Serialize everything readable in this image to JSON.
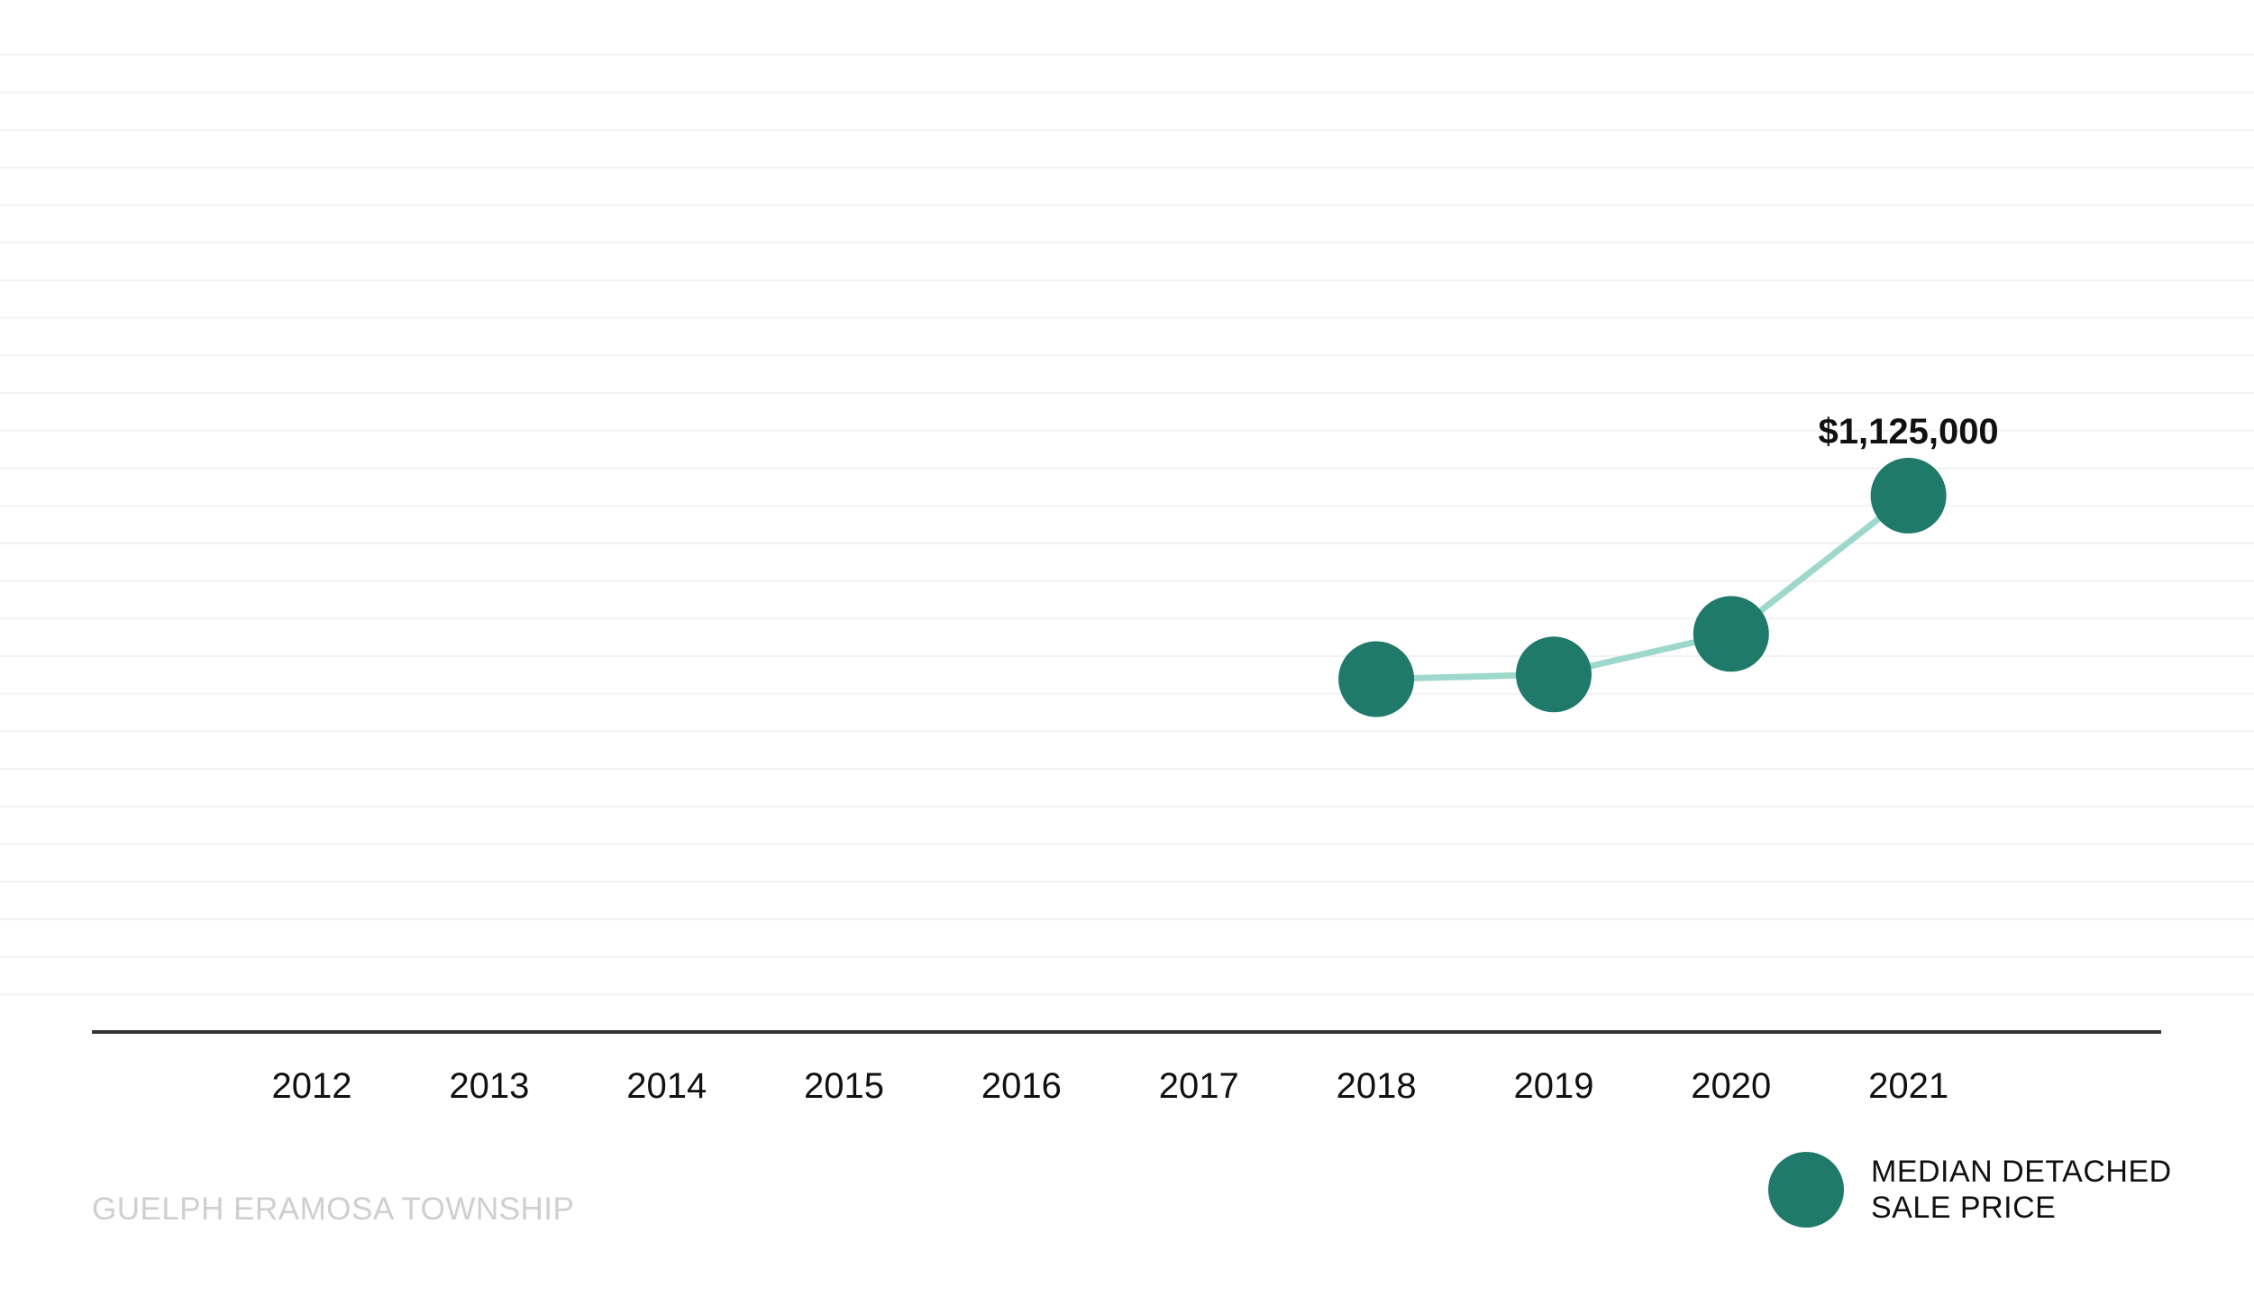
{
  "chart_data": {
    "type": "line",
    "categories": [
      "2012",
      "2013",
      "2014",
      "2015",
      "2016",
      "2017",
      "2018",
      "2019",
      "2020",
      "2021"
    ],
    "series": [
      {
        "name": "MEDIAN DETACHED SALE PRICE",
        "values": [
          null,
          null,
          null,
          null,
          null,
          null,
          740000,
          750000,
          835000,
          1125000
        ]
      }
    ],
    "data_labels": [
      {
        "category": "2021",
        "text": "$1,125,000"
      }
    ],
    "title": "",
    "xlabel": "",
    "ylabel": "",
    "ylim": [
      0,
      1600000
    ],
    "grid": "horizontal",
    "legend_position": "bottom-right",
    "colors": {
      "marker": "#1f7a6a",
      "line": "#9ed8cc",
      "axis": "#333333",
      "grid": "#f2f2f2"
    }
  },
  "legend": {
    "line1": "MEDIAN DETACHED",
    "line2": "SALE PRICE"
  },
  "caption": "GUELPH ERAMOSA TOWNSHIP"
}
